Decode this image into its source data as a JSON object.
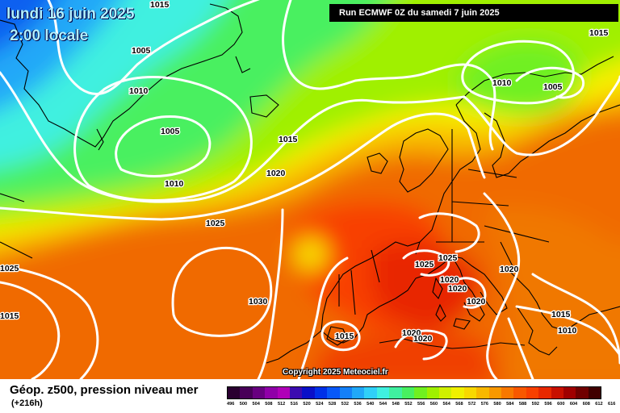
{
  "header": {
    "date": "lundi 16 juin 2025",
    "local_time": "2:00 locale",
    "run": "Run ECMWF 0Z du samedi 7 juin 2025"
  },
  "copyright": "Copyright 2025 Meteociel.fr",
  "footer": {
    "title": "Géop. z500, pression niveau mer",
    "lead": "(+216h)"
  },
  "isobar_labels": [
    {
      "id": "l1",
      "text": "1015"
    },
    {
      "id": "l2",
      "text": "1005"
    },
    {
      "id": "l3",
      "text": "1010"
    },
    {
      "id": "l4",
      "text": "1005"
    },
    {
      "id": "l5",
      "text": "1010"
    },
    {
      "id": "l6",
      "text": "1015"
    },
    {
      "id": "l7",
      "text": "1020"
    },
    {
      "id": "l8",
      "text": "1025"
    },
    {
      "id": "l9",
      "text": "1025"
    },
    {
      "id": "l10",
      "text": "1015"
    },
    {
      "id": "l11",
      "text": "1030"
    },
    {
      "id": "l12",
      "text": "1015"
    },
    {
      "id": "l13",
      "text": "1010"
    },
    {
      "id": "l14",
      "text": "1005"
    },
    {
      "id": "l15",
      "text": "1015"
    },
    {
      "id": "l16",
      "text": "1025"
    },
    {
      "id": "l17",
      "text": "1025"
    },
    {
      "id": "l18",
      "text": "1020"
    },
    {
      "id": "l19",
      "text": "1020"
    },
    {
      "id": "l20",
      "text": "1020"
    },
    {
      "id": "l21",
      "text": "1020"
    },
    {
      "id": "l22",
      "text": "1015"
    },
    {
      "id": "l23",
      "text": "1010"
    },
    {
      "id": "l24",
      "text": "1020"
    },
    {
      "id": "l25",
      "text": "1020"
    }
  ],
  "legend": {
    "ticks": [
      "496",
      "500",
      "504",
      "508",
      "512",
      "516",
      "520",
      "524",
      "528",
      "532",
      "536",
      "540",
      "544",
      "548",
      "552",
      "556",
      "560",
      "564",
      "568",
      "572",
      "576",
      "580",
      "584",
      "588",
      "592",
      "596",
      "600",
      "604",
      "608",
      "612",
      "616"
    ],
    "colors": [
      "#2a0030",
      "#480058",
      "#680080",
      "#9000a8",
      "#b000b8",
      "#3c0cb0",
      "#0a10c8",
      "#0030e8",
      "#0858f8",
      "#1480f8",
      "#20a8f8",
      "#30d0f8",
      "#40f0e0",
      "#40f0a0",
      "#48f060",
      "#70f020",
      "#a0f000",
      "#d0f000",
      "#f0f000",
      "#f8d800",
      "#f8b800",
      "#f89800",
      "#f87800",
      "#f85800",
      "#f84000",
      "#e82800",
      "#c81000",
      "#a00000",
      "#700000",
      "#400000"
    ]
  }
}
